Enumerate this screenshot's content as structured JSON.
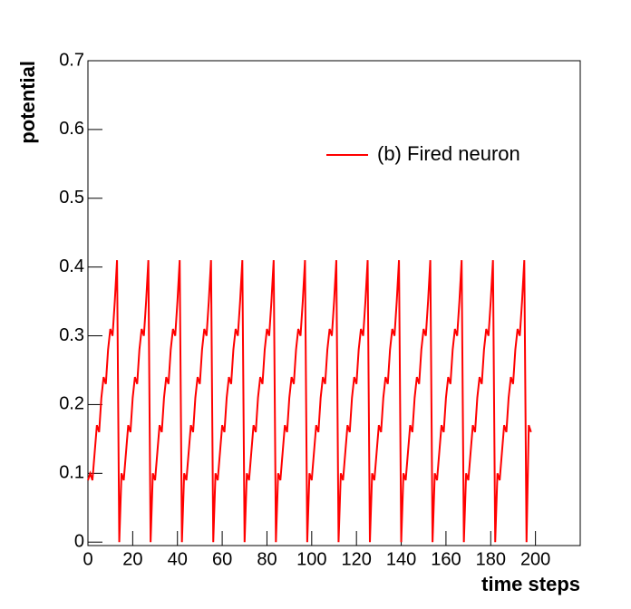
{
  "chart_data": {
    "type": "line",
    "y_label": "potential",
    "x_label": "time steps",
    "xlim": [
      0,
      220
    ],
    "ylim": [
      -0.005,
      0.7
    ],
    "xticks": [
      0,
      20,
      40,
      60,
      80,
      100,
      120,
      140,
      160,
      180,
      200
    ],
    "yticks": [
      0,
      0.1,
      0.2,
      0.3,
      0.4,
      0.5,
      0.6,
      0.7
    ],
    "legend": "upper right",
    "x": [
      0,
      1,
      2,
      3,
      4,
      5,
      6,
      7,
      8,
      9,
      10,
      11,
      12,
      13,
      14,
      15,
      16,
      17,
      18,
      19,
      20,
      21,
      22,
      23,
      24,
      25,
      26,
      27,
      28,
      29,
      30,
      31,
      32,
      33,
      34,
      35,
      36,
      37,
      38,
      39,
      40,
      41,
      42,
      43,
      44,
      45,
      46,
      47,
      48,
      49,
      50,
      51,
      52,
      53,
      54,
      55,
      56,
      57,
      58,
      59,
      60,
      61,
      62,
      63,
      64,
      65,
      66,
      67,
      68,
      69,
      70,
      71,
      72,
      73,
      74,
      75,
      76,
      77,
      78,
      79,
      80,
      81,
      82,
      83,
      84,
      85,
      86,
      87,
      88,
      89,
      90,
      91,
      92,
      93,
      94,
      95,
      96,
      97,
      98,
      99,
      100,
      101,
      102,
      103,
      104,
      105,
      106,
      107,
      108,
      109,
      110,
      111,
      112,
      113,
      114,
      115,
      116,
      117,
      118,
      119,
      120,
      121,
      122,
      123,
      124,
      125,
      126,
      127,
      128,
      129,
      130,
      131,
      132,
      133,
      134,
      135,
      136,
      137,
      138,
      139,
      140,
      141,
      142,
      143,
      144,
      145,
      146,
      147,
      148,
      149,
      150,
      151,
      152,
      153,
      154,
      155,
      156,
      157,
      158,
      159,
      160,
      161,
      162,
      163,
      164,
      165,
      166,
      167,
      168,
      169,
      170,
      171,
      172,
      173,
      174,
      175,
      176,
      177,
      178,
      179,
      180,
      181,
      182,
      183,
      184,
      185,
      186,
      187,
      188,
      189,
      190,
      191,
      192,
      193,
      194,
      195,
      196,
      197,
      198
    ],
    "series": [
      {
        "name": "(b) Fired neuron",
        "color": "#ff0000",
        "values": [
          0.09,
          0.1,
          0.09,
          0.13,
          0.17,
          0.16,
          0.21,
          0.24,
          0.23,
          0.28,
          0.31,
          0.3,
          0.35,
          0.41,
          0,
          0.1,
          0.09,
          0.13,
          0.17,
          0.16,
          0.21,
          0.24,
          0.23,
          0.28,
          0.31,
          0.3,
          0.35,
          0.41,
          0,
          0.1,
          0.09,
          0.13,
          0.17,
          0.16,
          0.21,
          0.24,
          0.23,
          0.28,
          0.31,
          0.3,
          0.35,
          0.41,
          0,
          0.1,
          0.09,
          0.13,
          0.17,
          0.16,
          0.21,
          0.24,
          0.23,
          0.28,
          0.31,
          0.3,
          0.35,
          0.41,
          0,
          0.1,
          0.09,
          0.13,
          0.17,
          0.16,
          0.21,
          0.24,
          0.23,
          0.28,
          0.31,
          0.3,
          0.35,
          0.41,
          0,
          0.1,
          0.09,
          0.13,
          0.17,
          0.16,
          0.21,
          0.24,
          0.23,
          0.28,
          0.31,
          0.3,
          0.35,
          0.41,
          0,
          0.1,
          0.09,
          0.13,
          0.17,
          0.16,
          0.21,
          0.24,
          0.23,
          0.28,
          0.31,
          0.3,
          0.35,
          0.41,
          0,
          0.1,
          0.09,
          0.13,
          0.17,
          0.16,
          0.21,
          0.24,
          0.23,
          0.28,
          0.31,
          0.3,
          0.35,
          0.41,
          0,
          0.1,
          0.09,
          0.13,
          0.17,
          0.16,
          0.21,
          0.24,
          0.23,
          0.28,
          0.31,
          0.3,
          0.35,
          0.41,
          0,
          0.1,
          0.09,
          0.13,
          0.17,
          0.16,
          0.21,
          0.24,
          0.23,
          0.28,
          0.31,
          0.3,
          0.35,
          0.41,
          0,
          0.1,
          0.09,
          0.13,
          0.17,
          0.16,
          0.21,
          0.24,
          0.23,
          0.28,
          0.31,
          0.3,
          0.35,
          0.41,
          0,
          0.1,
          0.09,
          0.13,
          0.17,
          0.16,
          0.21,
          0.24,
          0.23,
          0.28,
          0.31,
          0.3,
          0.35,
          0.41,
          0,
          0.1,
          0.09,
          0.13,
          0.17,
          0.16,
          0.21,
          0.24,
          0.23,
          0.28,
          0.31,
          0.3,
          0.35,
          0.41,
          0,
          0.1,
          0.09,
          0.13,
          0.17,
          0.16,
          0.21,
          0.24,
          0.23,
          0.28,
          0.31,
          0.3,
          0.35,
          0.41,
          0,
          0.17,
          0.16
        ]
      }
    ]
  }
}
